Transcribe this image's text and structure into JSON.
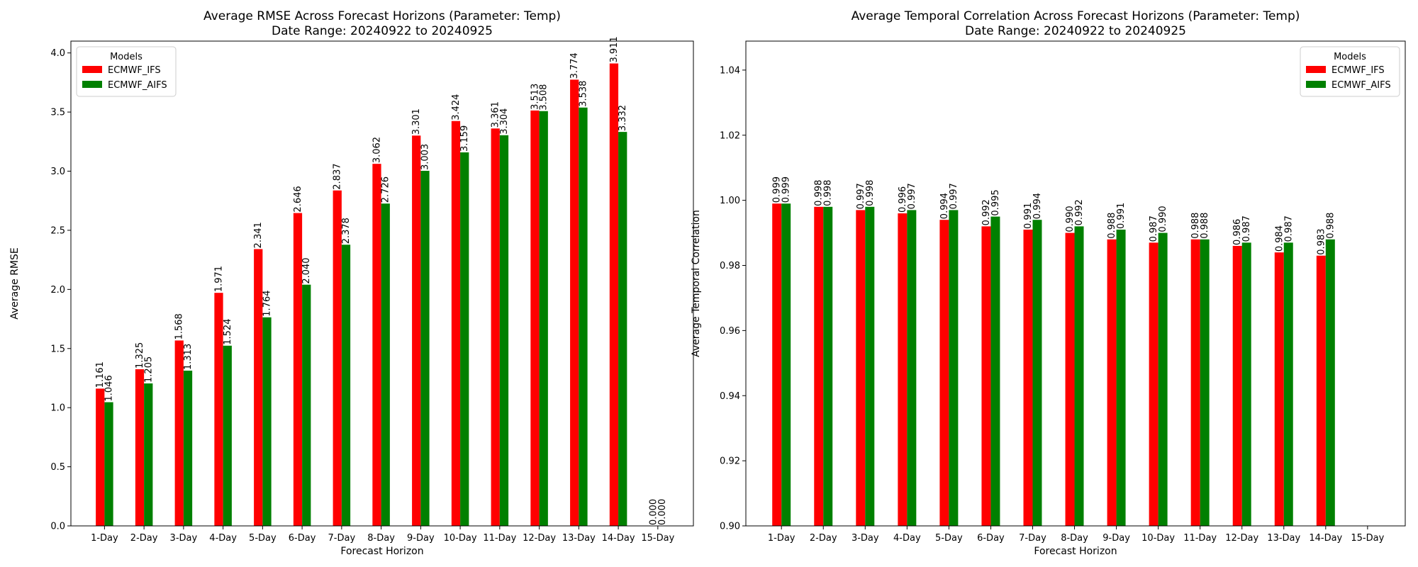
{
  "chart_data": [
    {
      "type": "bar",
      "title": "Average RMSE Across Forecast Horizons (Parameter: Temp)",
      "subtitle": "Date Range: 20240922 to 20240925",
      "xlabel": "Forecast Horizon",
      "ylabel": "Average RMSE",
      "categories": [
        "1-Day",
        "2-Day",
        "3-Day",
        "4-Day",
        "5-Day",
        "6-Day",
        "7-Day",
        "8-Day",
        "9-Day",
        "10-Day",
        "11-Day",
        "12-Day",
        "13-Day",
        "14-Day",
        "15-Day"
      ],
      "ylim": [
        0,
        4.1
      ],
      "yticks": [
        "0.0",
        "0.5",
        "1.0",
        "1.5",
        "2.0",
        "2.5",
        "3.0",
        "3.5",
        "4.0"
      ],
      "grid": false,
      "legend": {
        "title": "Models",
        "placement": "upper left"
      },
      "series": [
        {
          "name": "ECMWF_IFS",
          "color": "#ff0000",
          "values": [
            1.161,
            1.325,
            1.568,
            1.971,
            2.341,
            2.646,
            2.837,
            3.062,
            3.301,
            3.424,
            3.361,
            3.513,
            3.774,
            3.911,
            0.0
          ],
          "labels": [
            "1.161",
            "1.325",
            "1.568",
            "1.971",
            "2.341",
            "2.646",
            "2.837",
            "3.062",
            "3.301",
            "3.424",
            "3.361",
            "3.513",
            "3.774",
            "3.911",
            "0.000"
          ]
        },
        {
          "name": "ECMWF_AIFS",
          "color": "#008000",
          "values": [
            1.046,
            1.205,
            1.313,
            1.524,
            1.764,
            2.04,
            2.378,
            2.726,
            3.003,
            3.159,
            3.304,
            3.508,
            3.538,
            3.332,
            0.0
          ],
          "labels": [
            "1.046",
            "1.205",
            "1.313",
            "1.524",
            "1.764",
            "2.040",
            "2.378",
            "2.726",
            "3.003",
            "3.159",
            "3.304",
            "3.508",
            "3.538",
            "3.332",
            "0.000"
          ]
        }
      ]
    },
    {
      "type": "bar",
      "title": "Average Temporal Correlation Across Forecast Horizons (Parameter: Temp)",
      "subtitle": "Date Range: 20240922 to 20240925",
      "xlabel": "Forecast Horizon",
      "ylabel": "Average Temporal Correlation",
      "categories": [
        "1-Day",
        "2-Day",
        "3-Day",
        "4-Day",
        "5-Day",
        "6-Day",
        "7-Day",
        "8-Day",
        "9-Day",
        "10-Day",
        "11-Day",
        "12-Day",
        "13-Day",
        "14-Day",
        "15-Day"
      ],
      "ylim": [
        0.9,
        1.0489
      ],
      "yticks": [
        "0.90",
        "0.92",
        "0.94",
        "0.96",
        "0.98",
        "1.00",
        "1.02",
        "1.04"
      ],
      "grid": false,
      "legend": {
        "title": "Models",
        "placement": "upper right"
      },
      "series": [
        {
          "name": "ECMWF_IFS",
          "color": "#ff0000",
          "values": [
            0.999,
            0.998,
            0.997,
            0.996,
            0.994,
            0.992,
            0.991,
            0.99,
            0.988,
            0.987,
            0.988,
            0.986,
            0.984,
            0.983,
            null
          ],
          "labels": [
            "0.999",
            "0.998",
            "0.997",
            "0.996",
            "0.994",
            "0.992",
            "0.991",
            "0.990",
            "0.988",
            "0.987",
            "0.988",
            "0.986",
            "0.984",
            "0.983",
            ""
          ]
        },
        {
          "name": "ECMWF_AIFS",
          "color": "#008000",
          "values": [
            0.999,
            0.998,
            0.998,
            0.997,
            0.997,
            0.995,
            0.994,
            0.992,
            0.991,
            0.99,
            0.988,
            0.987,
            0.987,
            0.988,
            null
          ],
          "labels": [
            "0.999",
            "0.998",
            "0.998",
            "0.997",
            "0.997",
            "0.995",
            "0.994",
            "0.992",
            "0.991",
            "0.990",
            "0.988",
            "0.987",
            "0.987",
            "0.988",
            ""
          ]
        }
      ]
    }
  ]
}
